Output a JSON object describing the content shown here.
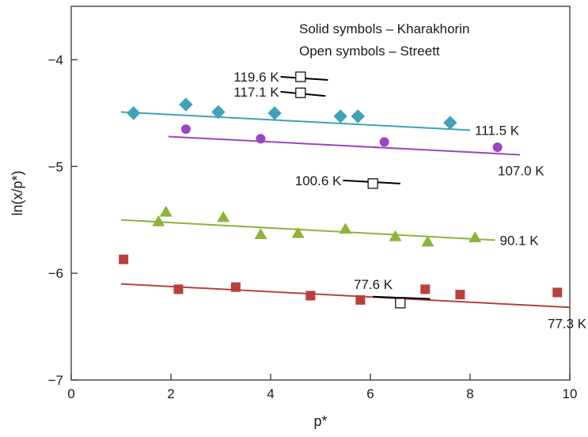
{
  "chart_data": {
    "type": "scatter",
    "title": "",
    "xlabel": "p*",
    "ylabel": "ln(x/p*)",
    "xlim": [
      0,
      10
    ],
    "ylim": [
      -7,
      -3.5
    ],
    "x_ticks": [
      0,
      2,
      4,
      6,
      8,
      10
    ],
    "y_ticks": [
      -7,
      -6,
      -5,
      -4
    ],
    "x_tick_labels": [
      "0",
      "2",
      "4",
      "6",
      "8",
      "10"
    ],
    "y_tick_labels": [
      "−7",
      "−6",
      "−5",
      "−4"
    ],
    "grid": false,
    "annotations": [
      "Solid symbols – Kharakhorin",
      "Open symbols – Streett"
    ],
    "series": [
      {
        "name": "111.5 K",
        "source": "Kharakhorin",
        "marker": "diamond",
        "filled": true,
        "color": "#3fa3b8",
        "points": [
          [
            1.25,
            -4.5
          ],
          [
            2.3,
            -4.42
          ],
          [
            2.95,
            -4.49
          ],
          [
            4.08,
            -4.5
          ],
          [
            5.4,
            -4.53
          ],
          [
            5.75,
            -4.53
          ],
          [
            7.6,
            -4.59
          ]
        ],
        "fit": [
          [
            1.0,
            -4.49
          ],
          [
            8.0,
            -4.66
          ]
        ]
      },
      {
        "name": "107.0 K",
        "source": "Kharakhorin",
        "marker": "circle",
        "filled": true,
        "color": "#9b45c2",
        "points": [
          [
            2.3,
            -4.65
          ],
          [
            3.8,
            -4.74
          ],
          [
            6.28,
            -4.77
          ],
          [
            8.55,
            -4.82
          ]
        ],
        "fit": [
          [
            1.95,
            -4.72
          ],
          [
            9.0,
            -4.89
          ]
        ]
      },
      {
        "name": "90.1 K",
        "source": "Kharakhorin",
        "marker": "triangle",
        "filled": true,
        "color": "#8db33a",
        "points": [
          [
            1.75,
            -5.52
          ],
          [
            1.9,
            -5.43
          ],
          [
            3.05,
            -5.48
          ],
          [
            3.8,
            -5.64
          ],
          [
            4.55,
            -5.63
          ],
          [
            5.5,
            -5.59
          ],
          [
            6.5,
            -5.66
          ],
          [
            7.15,
            -5.71
          ],
          [
            8.1,
            -5.67
          ]
        ],
        "fit": [
          [
            1.0,
            -5.5
          ],
          [
            8.5,
            -5.69
          ]
        ]
      },
      {
        "name": "77.3 K",
        "source": "Kharakhorin",
        "marker": "square",
        "filled": true,
        "color": "#b8413c",
        "points": [
          [
            1.05,
            -5.87
          ],
          [
            2.15,
            -6.15
          ],
          [
            3.3,
            -6.13
          ],
          [
            4.8,
            -6.21
          ],
          [
            5.8,
            -6.25
          ],
          [
            7.1,
            -6.15
          ],
          [
            7.8,
            -6.2
          ],
          [
            9.75,
            -6.18
          ]
        ],
        "fit": [
          [
            1.0,
            -6.1
          ],
          [
            10.0,
            -6.32
          ]
        ]
      },
      {
        "name": "119.6 K",
        "source": "Streett",
        "marker": "square",
        "filled": false,
        "color": "#000000",
        "points": [
          [
            4.6,
            -4.16
          ]
        ],
        "fit": [
          [
            4.2,
            -4.16
          ],
          [
            5.15,
            -4.19
          ]
        ]
      },
      {
        "name": "117.1 K",
        "source": "Streett",
        "marker": "square",
        "filled": false,
        "color": "#000000",
        "points": [
          [
            4.6,
            -4.31
          ]
        ],
        "fit": [
          [
            4.2,
            -4.3
          ],
          [
            5.1,
            -4.34
          ]
        ]
      },
      {
        "name": "100.6 K",
        "source": "Streett",
        "marker": "square",
        "filled": false,
        "color": "#000000",
        "points": [
          [
            6.05,
            -5.16
          ]
        ],
        "fit": [
          [
            5.45,
            -5.13
          ],
          [
            6.6,
            -5.16
          ]
        ]
      },
      {
        "name": "77.6 K",
        "source": "Streett",
        "marker": "square",
        "filled": false,
        "color": "#000000",
        "points": [
          [
            6.6,
            -6.28
          ]
        ],
        "fit": [
          [
            6.05,
            -6.22
          ],
          [
            7.2,
            -6.24
          ]
        ]
      }
    ]
  }
}
